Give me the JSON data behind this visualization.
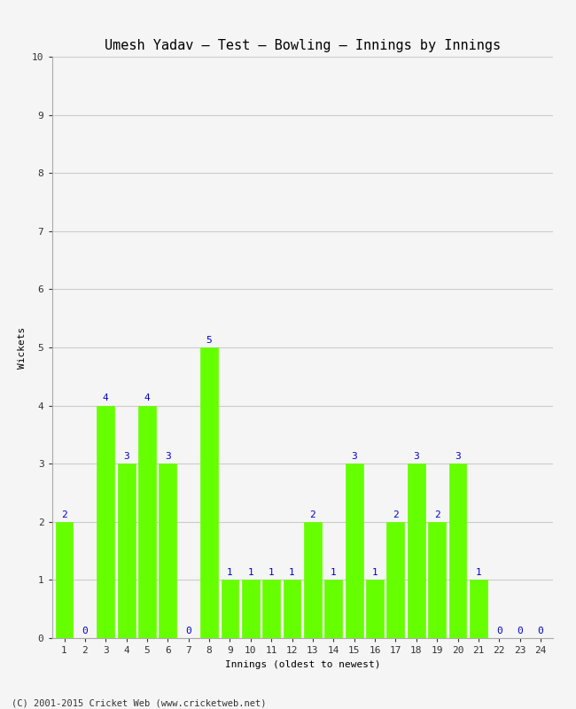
{
  "title": "Umesh Yadav – Test – Bowling – Innings by Innings",
  "xlabel": "Innings (oldest to newest)",
  "ylabel": "Wickets",
  "bar_color": "#66ff00",
  "bar_edge_color": "#66ff00",
  "background_color": "#f5f5f5",
  "grid_color": "#cccccc",
  "label_color": "#0000cc",
  "categories": [
    "1",
    "2",
    "3",
    "4",
    "5",
    "6",
    "7",
    "8",
    "9",
    "10",
    "11",
    "12",
    "13",
    "14",
    "15",
    "16",
    "17",
    "18",
    "19",
    "20",
    "21",
    "22",
    "23",
    "24"
  ],
  "values": [
    2,
    0,
    4,
    3,
    4,
    3,
    0,
    5,
    1,
    1,
    1,
    1,
    2,
    1,
    3,
    1,
    2,
    3,
    2,
    3,
    1,
    0,
    0,
    0
  ],
  "ylim": [
    0,
    10
  ],
  "yticks": [
    0,
    1,
    2,
    3,
    4,
    5,
    6,
    7,
    8,
    9,
    10
  ],
  "footnote": "(C) 2001-2015 Cricket Web (www.cricketweb.net)",
  "title_fontsize": 11,
  "axis_label_fontsize": 8,
  "tick_fontsize": 8,
  "annotation_fontsize": 8,
  "footnote_fontsize": 7.5
}
